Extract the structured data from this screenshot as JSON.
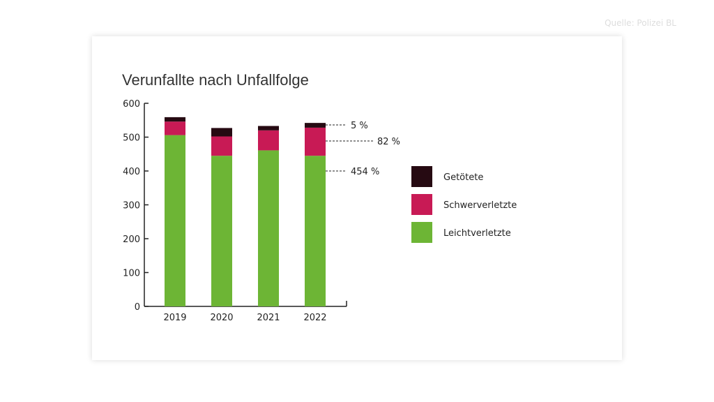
{
  "source": "Quelle: Polizei BL",
  "chart_data": {
    "type": "bar",
    "stacked": true,
    "title": "Verunfallte nach Unfallfolge",
    "categories": [
      "2019",
      "2020",
      "2021",
      "2022"
    ],
    "series": [
      {
        "name": "Leichtverletzte",
        "color": "#6db535",
        "values": [
          506,
          445,
          461,
          445
        ]
      },
      {
        "name": "Schwerverletzte",
        "color": "#c81a55",
        "values": [
          40,
          57,
          59,
          83
        ]
      },
      {
        "name": "Getötete",
        "color": "#260a12",
        "values": [
          13,
          25,
          13,
          14
        ]
      }
    ],
    "ylim": [
      0,
      600
    ],
    "yticks": [
      0,
      100,
      200,
      300,
      400,
      500,
      600
    ],
    "annotations": [
      "5 %",
      "82 %",
      "454 %"
    ],
    "legend": "right",
    "grid": false
  }
}
